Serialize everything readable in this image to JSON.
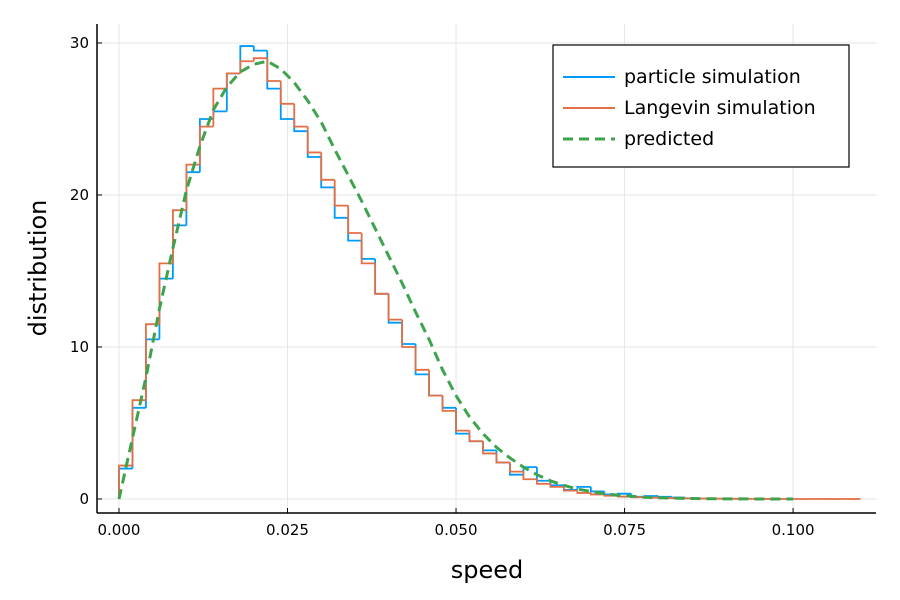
{
  "chart_data": {
    "type": "step-histogram",
    "xlabel": "speed",
    "ylabel": "distribution",
    "xlim": [
      -0.00326,
      0.1123
    ],
    "ylim": [
      -0.92,
      31.25
    ],
    "xticks": [
      {
        "value": 0,
        "label": "0.000"
      },
      {
        "value": 0.025,
        "label": "0.025"
      },
      {
        "value": 0.05,
        "label": "0.050"
      },
      {
        "value": 0.075,
        "label": "0.075"
      },
      {
        "value": 0.1,
        "label": "0.100"
      }
    ],
    "yticks": [
      0,
      10,
      20,
      30
    ],
    "grid": true,
    "legend": "top-right",
    "series": [
      {
        "name": "particle simulation",
        "color": "#009af9",
        "style": "step",
        "bins": [
          0,
          0.002,
          0.004,
          0.006,
          0.008,
          0.01,
          0.012,
          0.014,
          0.016,
          0.018,
          0.02,
          0.022,
          0.024,
          0.026,
          0.028,
          0.03,
          0.032,
          0.034,
          0.036,
          0.038,
          0.04,
          0.042,
          0.044,
          0.046,
          0.048,
          0.05,
          0.052,
          0.054,
          0.056,
          0.058,
          0.06,
          0.062,
          0.064,
          0.066,
          0.068,
          0.07,
          0.072,
          0.074,
          0.076,
          0.078,
          0.08,
          0.082,
          0.084,
          0.086
        ],
        "values": [
          2,
          6,
          10.5,
          14.5,
          18,
          21.5,
          25,
          25.5,
          28,
          29.8,
          29.5,
          27,
          25,
          24.2,
          22.5,
          20.5,
          18.5,
          17,
          15.8,
          13.5,
          11.6,
          10.2,
          8.2,
          6.8,
          6,
          4.3,
          3.8,
          3.2,
          2.4,
          1.6,
          2.1,
          1.2,
          0.9,
          0.6,
          0.8,
          0.5,
          0.3,
          0.35,
          0.15,
          0.2,
          0.15,
          0.1,
          0.05
        ]
      },
      {
        "name": "Langevin simulation",
        "color": "#e26f46",
        "style": "step",
        "bins": [
          0,
          0.002,
          0.004,
          0.006,
          0.008,
          0.01,
          0.012,
          0.014,
          0.016,
          0.018,
          0.02,
          0.022,
          0.024,
          0.026,
          0.028,
          0.03,
          0.032,
          0.034,
          0.036,
          0.038,
          0.04,
          0.042,
          0.044,
          0.046,
          0.048,
          0.05,
          0.052,
          0.054,
          0.056,
          0.058,
          0.06,
          0.062,
          0.064,
          0.066,
          0.068,
          0.07,
          0.072,
          0.074,
          0.076,
          0.078,
          0.08,
          0.082,
          0.084,
          0.086,
          0.088,
          0.09,
          0.092,
          0.094,
          0.096,
          0.098,
          0.1,
          0.102,
          0.104,
          0.106,
          0.108,
          0.11
        ],
        "values": [
          2.2,
          6.5,
          11.5,
          15.5,
          19,
          22,
          24.5,
          27,
          28,
          28.8,
          29,
          27.5,
          26,
          24.5,
          22.8,
          21,
          19.3,
          17.5,
          15.5,
          13.5,
          11.8,
          10,
          8.5,
          6.8,
          5.8,
          4.5,
          3.8,
          3,
          2.4,
          1.8,
          1.3,
          1,
          0.8,
          0.55,
          0.4,
          0.3,
          0.22,
          0.16,
          0.12,
          0.09,
          0.07,
          0.05,
          0.04,
          0.03,
          0.02,
          0.015,
          0.01,
          0.01,
          0.005,
          0.005,
          0.003,
          0.002,
          0.002,
          0.001,
          0.001
        ]
      },
      {
        "name": "predicted",
        "color": "#3da44d",
        "style": "dashed-line",
        "x": [
          0,
          0.002,
          0.004,
          0.006,
          0.008,
          0.01,
          0.012,
          0.014,
          0.016,
          0.018,
          0.02,
          0.022,
          0.024,
          0.026,
          0.028,
          0.03,
          0.032,
          0.034,
          0.036,
          0.038,
          0.04,
          0.042,
          0.044,
          0.046,
          0.048,
          0.05,
          0.052,
          0.054,
          0.056,
          0.058,
          0.06,
          0.062,
          0.064,
          0.066,
          0.068,
          0.07,
          0.072,
          0.074,
          0.076,
          0.078,
          0.08,
          0.085,
          0.09,
          0.095,
          0.1
        ],
        "values": [
          0,
          4,
          8,
          12.5,
          16.5,
          20.3,
          23.2,
          25.6,
          27.1,
          28.1,
          28.6,
          28.8,
          28.3,
          27.4,
          26.2,
          24.8,
          23,
          21.3,
          19.6,
          17.8,
          16,
          14.2,
          12.3,
          10.5,
          8.5,
          6.8,
          5.4,
          4.3,
          3.4,
          2.7,
          2.1,
          1.6,
          1.2,
          0.9,
          0.65,
          0.5,
          0.35,
          0.25,
          0.18,
          0.12,
          0.08,
          0.03,
          0.01,
          0.004,
          0.001
        ]
      }
    ]
  }
}
